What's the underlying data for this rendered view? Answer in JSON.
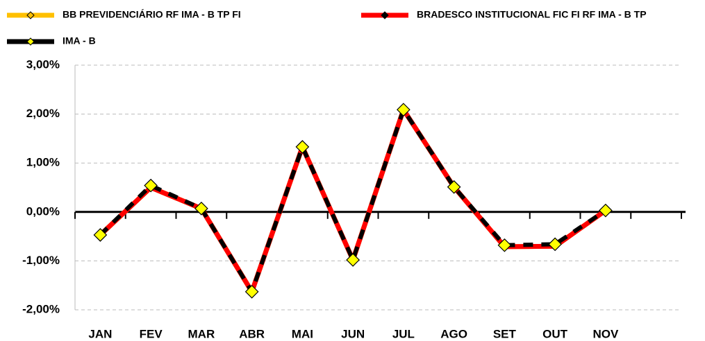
{
  "chart_data": {
    "type": "line",
    "categories": [
      "JAN",
      "FEV",
      "MAR",
      "ABR",
      "MAI",
      "JUN",
      "JUL",
      "AGO",
      "SET",
      "OUT",
      "NOV",
      null
    ],
    "series": [
      {
        "name": "BB PREVIDENCIÁRIO RF IMA - B TP FI",
        "color": "#ffc000",
        "marker_color": "#ffc000",
        "marker_size": 4,
        "values": [
          -0.47,
          0.5,
          0.07,
          -1.63,
          1.33,
          -0.98,
          2.09,
          0.51,
          -0.71,
          -0.7,
          0.03,
          null
        ]
      },
      {
        "name": "BRADESCO INSTITUCIONAL FIC FI RF IMA - B TP",
        "color": "#ff0000",
        "marker_color": "#000000",
        "marker_size": 4,
        "values": [
          -0.47,
          0.5,
          0.07,
          -1.63,
          1.33,
          -0.98,
          2.09,
          0.51,
          -0.71,
          -0.7,
          0.03,
          null
        ]
      },
      {
        "name": "IMA - B",
        "color": "#000000",
        "marker_color": "#ffff00",
        "marker_size": 9,
        "dashed": true,
        "values": [
          -0.47,
          0.54,
          0.07,
          -1.63,
          1.33,
          -0.98,
          2.09,
          0.51,
          -0.68,
          -0.66,
          0.03,
          null
        ]
      }
    ],
    "ylim": [
      -2,
      3
    ],
    "yticks": [
      {
        "value": -2,
        "label": "-2,00%"
      },
      {
        "value": -1,
        "label": "-1,00%"
      },
      {
        "value": 0,
        "label": "0,00%"
      },
      {
        "value": 1,
        "label": "1,00%"
      },
      {
        "value": 2,
        "label": "2,00%"
      },
      {
        "value": 3,
        "label": "3,00%"
      }
    ],
    "grid": true
  }
}
